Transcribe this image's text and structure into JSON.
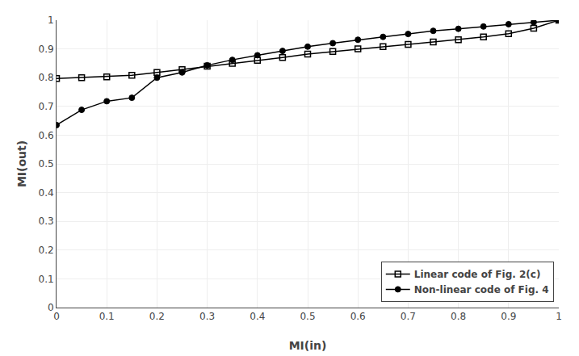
{
  "chart_data": {
    "type": "line",
    "x": [
      0.0,
      0.05,
      0.1,
      0.15,
      0.2,
      0.25,
      0.3,
      0.35,
      0.4,
      0.45,
      0.5,
      0.55,
      0.6,
      0.65,
      0.7,
      0.75,
      0.8,
      0.85,
      0.9,
      0.95,
      1.0
    ],
    "series": [
      {
        "name": "Linear code of Fig. 2(c)",
        "color": "#000000",
        "marker": "square-open",
        "values": [
          0.797,
          0.8,
          0.803,
          0.808,
          0.818,
          0.828,
          0.84,
          0.85,
          0.86,
          0.87,
          0.882,
          0.891,
          0.9,
          0.908,
          0.916,
          0.924,
          0.932,
          0.942,
          0.953,
          0.972,
          1.0
        ]
      },
      {
        "name": "Non-linear code of Fig. 4",
        "color": "#000000",
        "marker": "circle",
        "values": [
          0.635,
          0.688,
          0.718,
          0.73,
          0.8,
          0.818,
          0.843,
          0.862,
          0.878,
          0.893,
          0.908,
          0.92,
          0.932,
          0.942,
          0.952,
          0.963,
          0.97,
          0.978,
          0.986,
          0.993,
          1.0
        ]
      }
    ],
    "xlabel": "MI(in)",
    "ylabel": "MI(out)",
    "xlim": [
      0,
      1
    ],
    "ylim": [
      0,
      1
    ],
    "xticks": [
      0,
      0.1,
      0.2,
      0.3,
      0.4,
      0.5,
      0.6,
      0.7,
      0.8,
      0.9,
      1
    ],
    "yticks": [
      0,
      0.1,
      0.2,
      0.3,
      0.4,
      0.5,
      0.6,
      0.7,
      0.8,
      0.9,
      1
    ],
    "grid": true,
    "legend": "lower right"
  }
}
